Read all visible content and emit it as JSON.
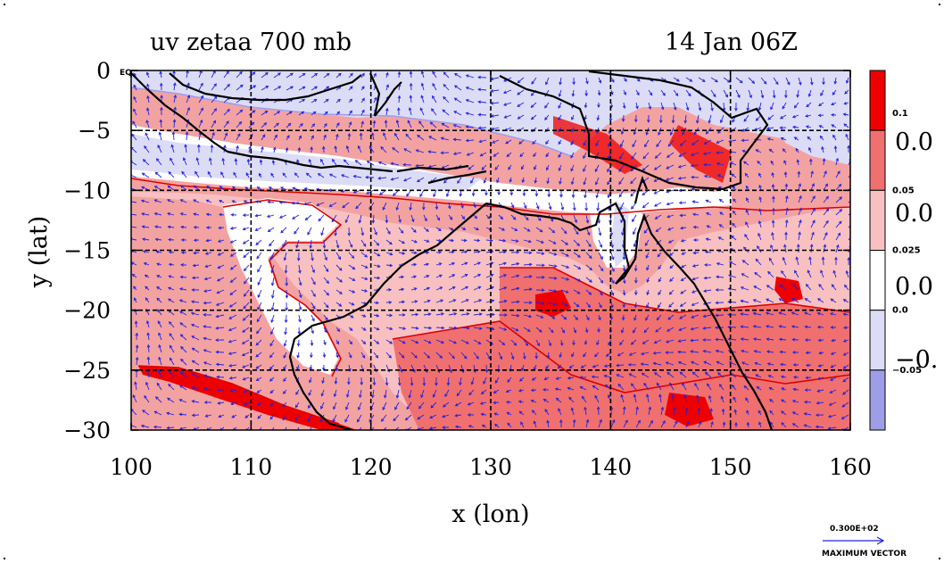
{
  "title_left": "uv zetaa 700 mb",
  "title_right": "14 Jan 06Z",
  "eq_label": "EQ",
  "axes": {
    "xlabel": "x (lon)",
    "ylabel": "y (lat)",
    "xlim": [
      100,
      160
    ],
    "ylim": [
      -30,
      0
    ],
    "xticks": [
      "100",
      "110",
      "120",
      "130",
      "140",
      "150",
      "160"
    ],
    "yticks": [
      "0",
      "−5",
      "−10",
      "−15",
      "−20",
      "−25",
      "−30"
    ],
    "grid": true
  },
  "colorbar": {
    "colors": [
      "#ee0000",
      "#f07070",
      "#f8c0c0",
      "#ffffff",
      "#dcdcf6",
      "#9e9ee8"
    ],
    "labels": [
      "0.1",
      "0.05",
      "0.025",
      "0.0",
      "−0.05"
    ],
    "big_labels": [
      "0.0",
      "0.0",
      "0.0",
      "−0."
    ]
  },
  "vector_key": {
    "value": "0.300E+02",
    "label": "MAXIMUM VECTOR"
  },
  "colors": {
    "vector": "#2222dd",
    "coast": "#000000",
    "contour": "#dd0000"
  }
}
